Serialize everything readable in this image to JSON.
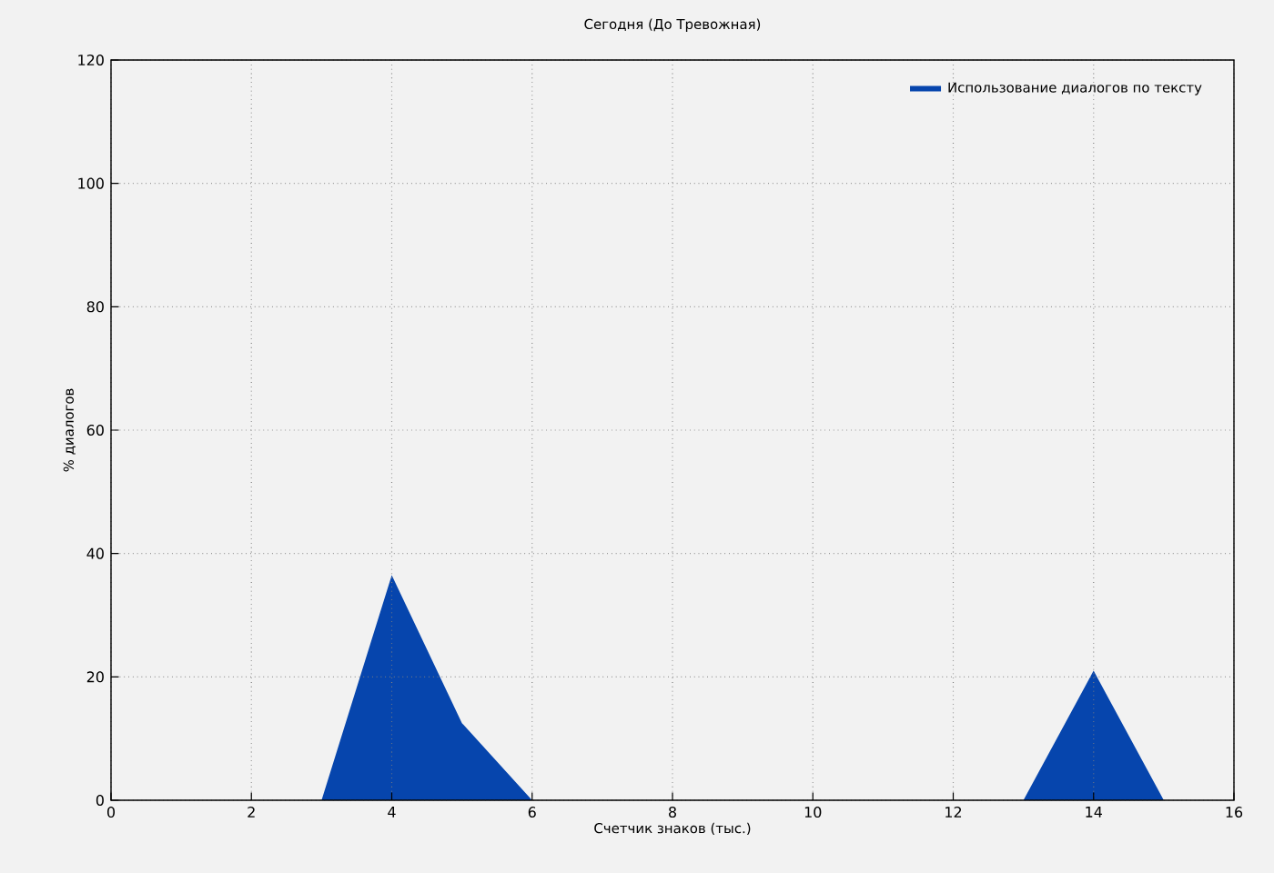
{
  "chart_data": {
    "type": "area",
    "title": "Сегодня (До Тревожная)",
    "xlabel": "Счетчик знаков (тыс.)",
    "ylabel": "% диалогов",
    "x": [
      0,
      1,
      2,
      3,
      4,
      5,
      6,
      7,
      8,
      9,
      10,
      11,
      12,
      13,
      14,
      15,
      16
    ],
    "series": [
      {
        "name": "Использование диалогов по тексту",
        "color": "#0645ad",
        "values": [
          0,
          0,
          0,
          0,
          36.5,
          12.5,
          0,
          0,
          0,
          0,
          0,
          0,
          0,
          0,
          21,
          0,
          0
        ]
      }
    ],
    "xlim": [
      0,
      16
    ],
    "xticks": [
      0,
      2,
      4,
      6,
      8,
      10,
      12,
      14,
      16
    ],
    "ylim": [
      0,
      120
    ],
    "yticks": [
      0,
      20,
      40,
      60,
      80,
      100,
      120
    ],
    "grid": true,
    "legend": "top right"
  }
}
